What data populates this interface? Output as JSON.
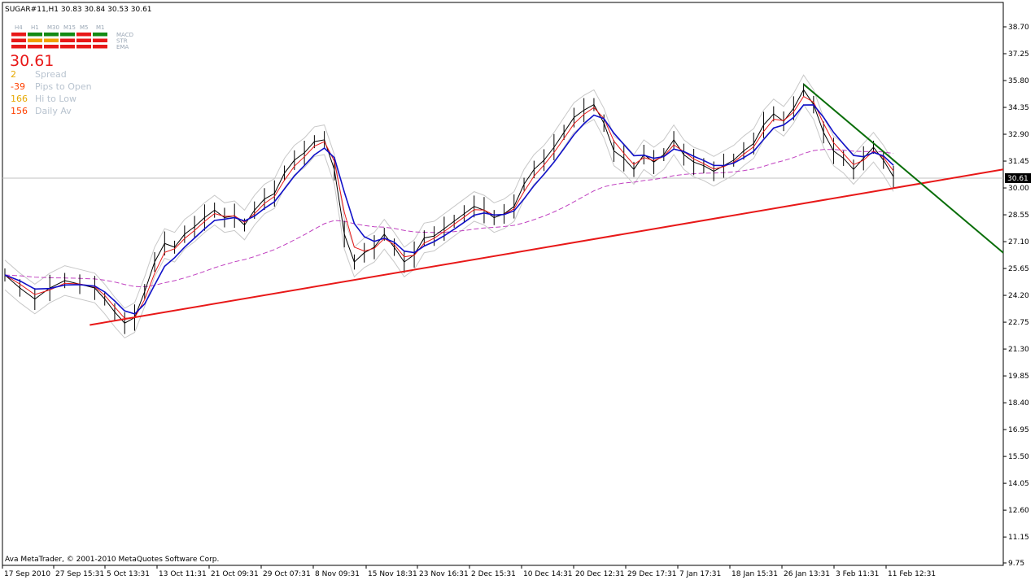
{
  "header": {
    "symbol_line": "SUGAR#11,H1  30.83 30.84 30.53 30.61"
  },
  "indicator_panel": {
    "timeframes": [
      "H4",
      "H1",
      "M30",
      "M15",
      "M5",
      "M1"
    ],
    "rows": [
      {
        "label": "MACD",
        "colors": [
          "red",
          "green",
          "green",
          "green",
          "red",
          "green"
        ]
      },
      {
        "label": "STR",
        "colors": [
          "red",
          "orange",
          "orange",
          "red",
          "red",
          "red"
        ]
      },
      {
        "label": "EMA",
        "colors": [
          "red",
          "red",
          "red",
          "red",
          "red",
          "red"
        ]
      }
    ],
    "current_price": "30.61",
    "stats": [
      {
        "value": "2",
        "label": "Spread",
        "color": "#e6a800"
      },
      {
        "value": "-39",
        "label": "Pips to Open",
        "color": "#ff4000"
      },
      {
        "value": "166",
        "label": "Hi to Low",
        "color": "#e6a800"
      },
      {
        "value": "156",
        "label": "Daily Av",
        "color": "#ff4000"
      }
    ],
    "colors": {
      "red": "#e81818",
      "green": "#138a13",
      "orange": "#f0a000"
    }
  },
  "footer_text": "Ava MetaTrader, © 2001-2010 MetaQuotes Software Corp.",
  "price_label": "30.61",
  "chart_data": {
    "type": "line",
    "title": "SUGAR#11,H1",
    "ylim": [
      9.75,
      38.7
    ],
    "y_ticks": [
      "38.70",
      "37.25",
      "35.80",
      "34.35",
      "32.90",
      "31.45",
      "30.00",
      "28.55",
      "27.10",
      "25.65",
      "24.20",
      "22.75",
      "21.30",
      "19.85",
      "18.40",
      "16.95",
      "15.50",
      "14.05",
      "12.60",
      "11.15",
      "9.75"
    ],
    "x_ticks": [
      "17 Sep 2010",
      "27 Sep 15:31",
      "5 Oct 13:31",
      "13 Oct 11:31",
      "21 Oct 09:31",
      "29 Oct 07:31",
      "8 Nov 09:31",
      "15 Nov 18:31",
      "23 Nov 16:31",
      "2 Dec 15:31",
      "10 Dec 14:31",
      "20 Dec 12:31",
      "29 Dec 17:31",
      "7 Jan 17:31",
      "18 Jan 15:31",
      "26 Jan 13:31",
      "3 Feb 11:31",
      "11 Feb 12:31"
    ],
    "price_series": [
      [
        0,
        25.3
      ],
      [
        3,
        24.6
      ],
      [
        6,
        24.0
      ],
      [
        9,
        24.6
      ],
      [
        12,
        25.0
      ],
      [
        15,
        24.8
      ],
      [
        18,
        24.6
      ],
      [
        20,
        24.0
      ],
      [
        22,
        23.3
      ],
      [
        24,
        22.7
      ],
      [
        26,
        23.0
      ],
      [
        28,
        24.4
      ],
      [
        30,
        26.0
      ],
      [
        32,
        27.0
      ],
      [
        34,
        26.8
      ],
      [
        36,
        27.5
      ],
      [
        38,
        27.9
      ],
      [
        40,
        28.4
      ],
      [
        42,
        28.8
      ],
      [
        44,
        28.4
      ],
      [
        46,
        28.5
      ],
      [
        48,
        28.0
      ],
      [
        50,
        28.8
      ],
      [
        52,
        29.4
      ],
      [
        54,
        29.7
      ],
      [
        56,
        30.8
      ],
      [
        58,
        31.5
      ],
      [
        60,
        31.9
      ],
      [
        62,
        32.5
      ],
      [
        64,
        32.6
      ],
      [
        66,
        31.0
      ],
      [
        68,
        27.5
      ],
      [
        70,
        26.0
      ],
      [
        72,
        26.5
      ],
      [
        74,
        26.8
      ],
      [
        76,
        27.5
      ],
      [
        78,
        26.8
      ],
      [
        80,
        26.0
      ],
      [
        82,
        26.4
      ],
      [
        84,
        27.3
      ],
      [
        86,
        27.4
      ],
      [
        88,
        27.8
      ],
      [
        90,
        28.2
      ],
      [
        92,
        28.6
      ],
      [
        94,
        29.0
      ],
      [
        96,
        28.8
      ],
      [
        98,
        28.4
      ],
      [
        100,
        28.6
      ],
      [
        102,
        29.0
      ],
      [
        104,
        30.2
      ],
      [
        106,
        31.0
      ],
      [
        108,
        31.5
      ],
      [
        110,
        32.2
      ],
      [
        112,
        33.0
      ],
      [
        114,
        33.8
      ],
      [
        116,
        34.2
      ],
      [
        118,
        34.5
      ],
      [
        120,
        33.5
      ],
      [
        122,
        32.0
      ],
      [
        124,
        31.6
      ],
      [
        126,
        31.0
      ],
      [
        128,
        31.8
      ],
      [
        130,
        31.4
      ],
      [
        132,
        31.8
      ],
      [
        134,
        32.6
      ],
      [
        136,
        31.8
      ],
      [
        138,
        31.4
      ],
      [
        140,
        31.2
      ],
      [
        142,
        30.9
      ],
      [
        144,
        31.2
      ],
      [
        146,
        31.5
      ],
      [
        148,
        32.0
      ],
      [
        150,
        32.4
      ],
      [
        152,
        33.4
      ],
      [
        154,
        34.0
      ],
      [
        156,
        33.6
      ],
      [
        158,
        34.3
      ],
      [
        160,
        35.3
      ],
      [
        162,
        34.5
      ],
      [
        164,
        33.0
      ],
      [
        166,
        32.0
      ],
      [
        168,
        31.6
      ],
      [
        170,
        31.0
      ],
      [
        172,
        31.6
      ],
      [
        174,
        32.2
      ],
      [
        176,
        31.5
      ],
      [
        178,
        30.61
      ]
    ],
    "support_line": {
      "name": "",
      "from": [
        17,
        22.6
      ],
      "to": [
        200,
        31.0
      ],
      "color": "#e81818"
    },
    "resistance_line": {
      "name": "",
      "from": [
        160,
        35.6
      ],
      "to": [
        200,
        26.5
      ],
      "color": "#0a6e0a"
    },
    "colors": {
      "price": "#000000",
      "ema_slow": "#1010c8",
      "ema_fast": "#e81818",
      "sma_long": "#c040c0",
      "envelope": "#c8c8c8"
    }
  }
}
